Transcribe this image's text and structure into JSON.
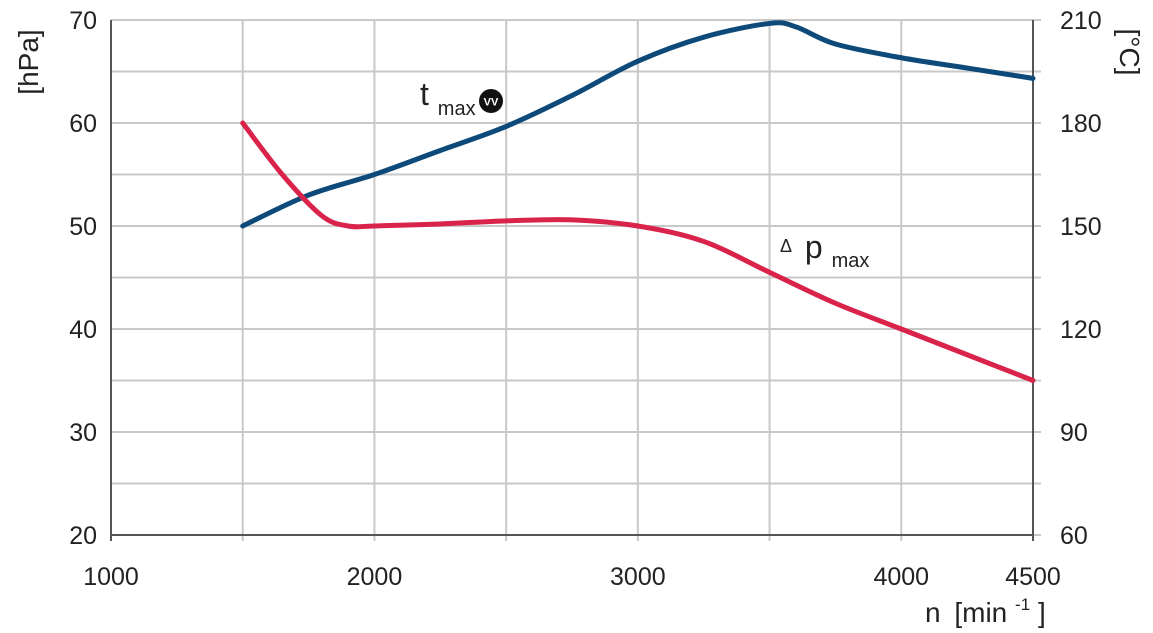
{
  "chart_data": {
    "type": "line",
    "x": [
      1500,
      1750,
      2000,
      2250,
      2500,
      2750,
      3000,
      3250,
      3500,
      3600,
      3750,
      4000,
      4250,
      4500
    ],
    "xlabel_main": "n",
    "xlabel_unit_left": "[min",
    "xlabel_unit_sup": "-1",
    "xlabel_unit_right": "]",
    "ylabel_left": "[hPa]",
    "ylabel_right": "[°C]",
    "xlim": [
      1000,
      4500
    ],
    "ylim_left": [
      20,
      70
    ],
    "ylim_right": [
      60,
      210
    ],
    "x_ticks": [
      1000,
      2000,
      3000,
      4000,
      4500
    ],
    "x_gridlines": [
      1000,
      1500,
      2000,
      2500,
      3000,
      3500,
      4000,
      4500
    ],
    "y_ticks_left": [
      20,
      30,
      40,
      50,
      60,
      70
    ],
    "y_ticks_right": [
      60,
      90,
      120,
      150,
      180,
      210
    ],
    "y_gridlines_left": [
      20,
      25,
      30,
      35,
      40,
      45,
      50,
      55,
      60,
      65,
      70
    ],
    "grid": true,
    "series": [
      {
        "name": "t",
        "name_sub": "max",
        "name_badge": "VV",
        "axis": "right",
        "color": "#0d4a7a",
        "x": [
          1500,
          1750,
          2000,
          2250,
          2500,
          2750,
          3000,
          3250,
          3500,
          3600,
          3750,
          4000,
          4250,
          4500
        ],
        "values": [
          150,
          159,
          165,
          172,
          179,
          188,
          198,
          205,
          209,
          208,
          203,
          199,
          196,
          193
        ]
      },
      {
        "name": "p",
        "name_prefix": "Δ",
        "name_sub": "max",
        "axis": "left",
        "color": "#d9234a",
        "x": [
          1500,
          1650,
          1800,
          1900,
          2000,
          2250,
          2500,
          2750,
          3000,
          3250,
          3500,
          3750,
          4000,
          4250,
          4500
        ],
        "values": [
          60,
          55,
          51,
          50,
          50,
          50.2,
          50.5,
          50.6,
          50,
          48.5,
          45.5,
          42.5,
          40,
          37.5,
          35
        ]
      }
    ]
  }
}
